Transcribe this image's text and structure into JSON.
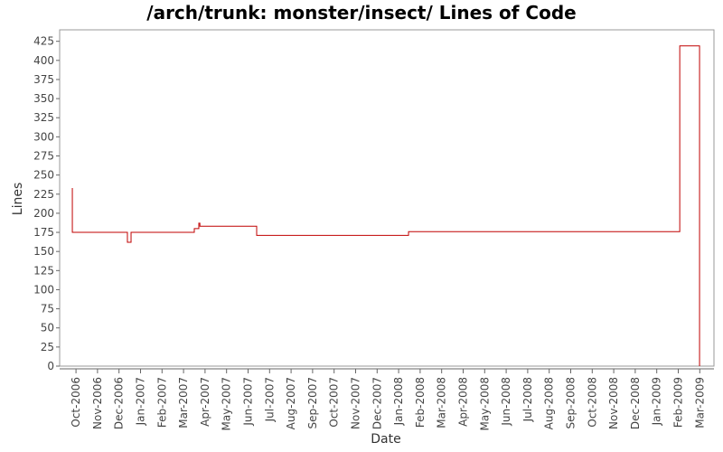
{
  "chart_data": {
    "type": "line",
    "title": "/arch/trunk: monster/insect/ Lines of Code",
    "x_label": "Date",
    "y_label": "Lines",
    "color": "#c00000",
    "x": [
      -0.17,
      -0.17,
      2.39,
      2.39,
      2.56,
      2.56,
      5.5,
      5.5,
      5.71,
      5.71,
      5.76,
      5.76,
      8.4,
      8.4,
      15.46,
      15.46,
      28.07,
      28.07,
      28.99,
      28.99
    ],
    "values": [
      233,
      175,
      175,
      162,
      162,
      175,
      175,
      180,
      180,
      187,
      187,
      183,
      183,
      171,
      171,
      176,
      176,
      419,
      419,
      0
    ],
    "xlim": [
      -0.76,
      29.66
    ],
    "xticks": [
      {
        "value": 0,
        "label": "Oct-2006"
      },
      {
        "value": 1,
        "label": "Nov-2006"
      },
      {
        "value": 2,
        "label": "Dec-2006"
      },
      {
        "value": 3,
        "label": "Jan-2007"
      },
      {
        "value": 4,
        "label": "Feb-2007"
      },
      {
        "value": 5,
        "label": "Mar-2007"
      },
      {
        "value": 6,
        "label": "Apr-2007"
      },
      {
        "value": 7,
        "label": "May-2007"
      },
      {
        "value": 8,
        "label": "Jun-2007"
      },
      {
        "value": 9,
        "label": "Jul-2007"
      },
      {
        "value": 10,
        "label": "Aug-2007"
      },
      {
        "value": 11,
        "label": "Sep-2007"
      },
      {
        "value": 12,
        "label": "Oct-2007"
      },
      {
        "value": 13,
        "label": "Nov-2007"
      },
      {
        "value": 14,
        "label": "Dec-2007"
      },
      {
        "value": 15,
        "label": "Jan-2008"
      },
      {
        "value": 16,
        "label": "Feb-2008"
      },
      {
        "value": 17,
        "label": "Mar-2008"
      },
      {
        "value": 18,
        "label": "Apr-2008"
      },
      {
        "value": 19,
        "label": "May-2008"
      },
      {
        "value": 20,
        "label": "Jun-2008"
      },
      {
        "value": 21,
        "label": "Jul-2008"
      },
      {
        "value": 22,
        "label": "Aug-2008"
      },
      {
        "value": 23,
        "label": "Sep-2008"
      },
      {
        "value": 24,
        "label": "Oct-2008"
      },
      {
        "value": 25,
        "label": "Nov-2008"
      },
      {
        "value": 26,
        "label": "Dec-2008"
      },
      {
        "value": 27,
        "label": "Jan-2009"
      },
      {
        "value": 28,
        "label": "Feb-2009"
      },
      {
        "value": 29,
        "label": "Mar-2009"
      }
    ],
    "ylim": [
      0,
      440
    ],
    "yticks": [
      0,
      25,
      50,
      75,
      100,
      125,
      150,
      175,
      200,
      225,
      250,
      275,
      300,
      325,
      350,
      375,
      400,
      425
    ]
  }
}
